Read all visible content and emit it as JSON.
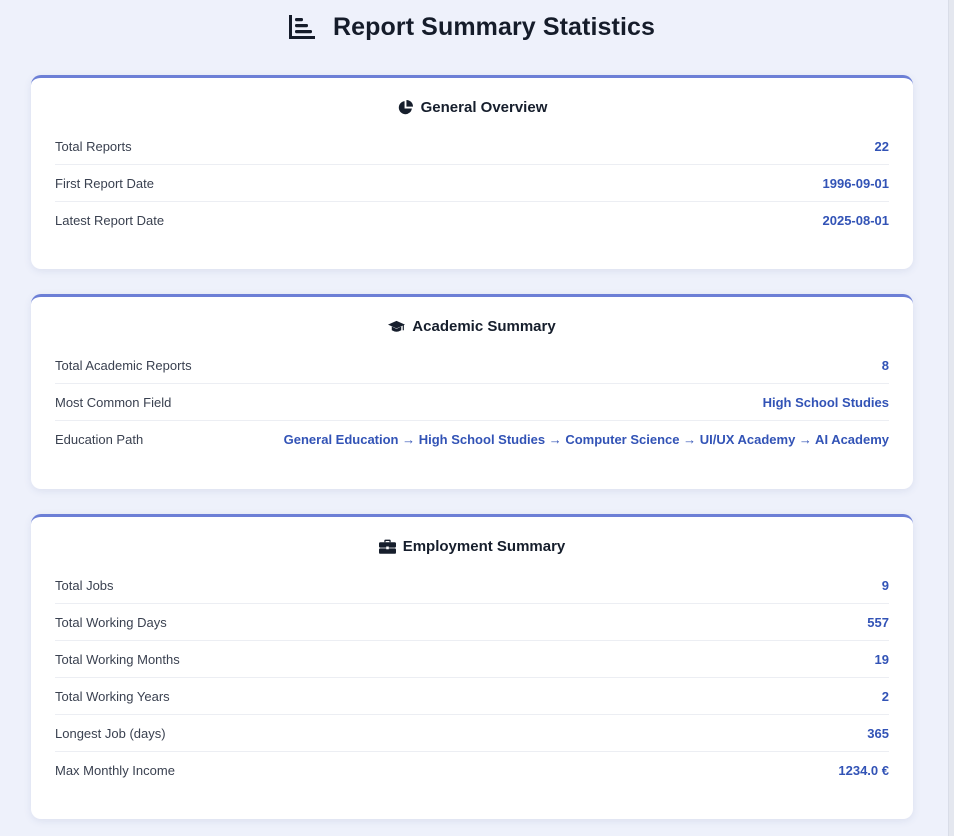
{
  "page": {
    "title": "Report Summary Statistics",
    "icon": "bar-chart-icon"
  },
  "colors": {
    "accent": "#6c7fd6",
    "value": "#3253b6",
    "background": "#eef1fb"
  },
  "sections": {
    "general": {
      "title": "General Overview",
      "icon": "pie-chart-icon",
      "rows": [
        {
          "label": "Total Reports",
          "value": "22"
        },
        {
          "label": "First Report Date",
          "value": "1996-09-01"
        },
        {
          "label": "Latest Report Date",
          "value": "2025-08-01"
        }
      ]
    },
    "academic": {
      "title": "Academic Summary",
      "icon": "graduation-cap-icon",
      "rows": [
        {
          "label": "Total Academic Reports",
          "value": "8"
        },
        {
          "label": "Most Common Field",
          "value": "High School Studies"
        },
        {
          "label": "Education Path",
          "value": "General Education → High School Studies → Computer Science → UI/UX Academy → AI Academy"
        }
      ]
    },
    "employment": {
      "title": "Employment Summary",
      "icon": "briefcase-icon",
      "rows": [
        {
          "label": "Total Jobs",
          "value": "9"
        },
        {
          "label": "Total Working Days",
          "value": "557"
        },
        {
          "label": "Total Working Months",
          "value": "19"
        },
        {
          "label": "Total Working Years",
          "value": "2"
        },
        {
          "label": "Longest Job (days)",
          "value": "365"
        },
        {
          "label": "Max Monthly Income",
          "value": "1234.0 €"
        }
      ]
    }
  }
}
